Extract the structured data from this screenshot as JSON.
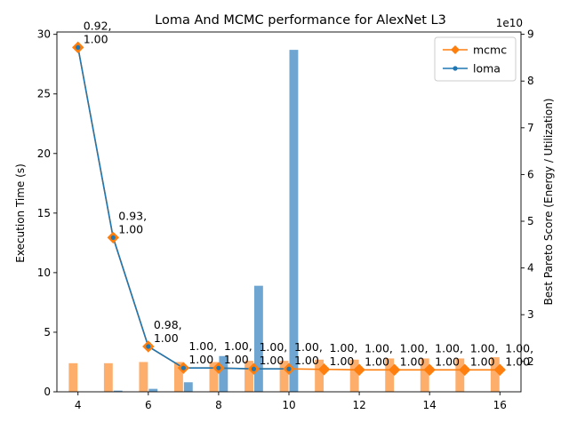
{
  "chart_data": {
    "type": "bar+line",
    "title": "Loma And MCMC performance for AlexNet L3",
    "xlabel": "",
    "ylabel_left": "Execution Time (s)",
    "ylabel_right": "Best Pareto Score (Energy / Utilization)",
    "right_axis_multiplier": "1e10",
    "x": [
      4,
      5,
      6,
      7,
      8,
      9,
      10,
      11,
      12,
      13,
      14,
      15,
      16
    ],
    "xticks": [
      4,
      6,
      8,
      10,
      12,
      14,
      16
    ],
    "xlim": [
      3.4,
      16.6
    ],
    "ylim_left": [
      0,
      30.2
    ],
    "yticks_left": [
      0,
      5,
      10,
      15,
      20,
      25,
      30
    ],
    "ylim_right": [
      13500000000.0,
      90500000000.0
    ],
    "yticks_right": [
      2,
      3,
      4,
      5,
      6,
      7,
      8,
      9
    ],
    "bars": {
      "mcmc_time": [
        2.4,
        2.4,
        2.5,
        2.5,
        2.5,
        2.6,
        2.6,
        2.7,
        2.7,
        2.8,
        2.8,
        2.8,
        2.9
      ],
      "loma_time": [
        0.0,
        0.1,
        0.25,
        0.8,
        3.0,
        8.9,
        28.7,
        null,
        null,
        null,
        null,
        null,
        null
      ],
      "mcmc_color": "#fdae6b",
      "loma_color": "#6ea6d1"
    },
    "series": [
      {
        "name": "mcmc",
        "color": "#ff7f0e",
        "marker": "diamond",
        "values": [
          87200000000.0,
          46500000000.0,
          23200000000.0,
          18600000000.0,
          18600000000.0,
          18400000000.0,
          18400000000.0,
          18300000000.0,
          18200000000.0,
          18200000000.0,
          18200000000.0,
          18200000000.0,
          18200000000.0
        ]
      },
      {
        "name": "loma",
        "color": "#1f77b4",
        "marker": "dot",
        "values": [
          87200000000.0,
          46500000000.0,
          23200000000.0,
          18600000000.0,
          18600000000.0,
          18400000000.0,
          18400000000.0,
          null,
          null,
          null,
          null,
          null,
          null
        ]
      }
    ],
    "annotations": [
      "0.92,\n1.00",
      "0.93,\n1.00",
      "0.98,\n1.00",
      "1.00,\n1.00",
      "1.00,\n1.00",
      "1.00,\n1.00",
      "1.00,\n1.00",
      "1.00,\n1.00",
      "1.00,\n1.00",
      "1.00,\n1.00",
      "1.00,\n1.00",
      "1.00,\n1.00",
      "1.00,\n1.00"
    ],
    "legend": {
      "position": "top-right",
      "entries": [
        "mcmc",
        "loma"
      ]
    },
    "grid": false
  }
}
